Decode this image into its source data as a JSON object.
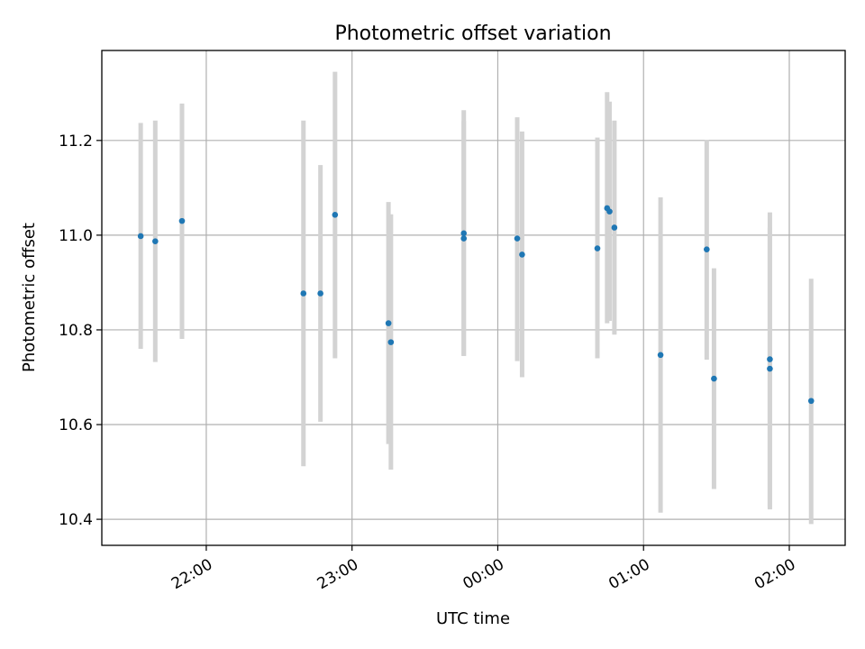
{
  "chart_data": {
    "type": "scatter",
    "title": "Photometric offset variation",
    "xlabel": "UTC time",
    "ylabel": "Photometric offset",
    "grid": true,
    "point_color": "#1f77b4",
    "errorbar_color": "#d3d3d3",
    "xlim": [
      "21:17",
      "02:23"
    ],
    "ylim": [
      10.345,
      11.39
    ],
    "x_ticks": [
      "22:00",
      "23:00",
      "00:00",
      "01:00",
      "02:00"
    ],
    "y_ticks": [
      "10.4",
      "10.6",
      "10.8",
      "11.0",
      "11.2"
    ],
    "points": [
      {
        "x": "21:33",
        "y": 10.998,
        "ylo": 10.76,
        "yhi": 11.237
      },
      {
        "x": "21:39",
        "y": 10.987,
        "ylo": 10.732,
        "yhi": 11.242
      },
      {
        "x": "21:50",
        "y": 11.03,
        "ylo": 10.781,
        "yhi": 11.278
      },
      {
        "x": "22:40",
        "y": 10.877,
        "ylo": 10.512,
        "yhi": 11.242
      },
      {
        "x": "22:47",
        "y": 10.877,
        "ylo": 10.606,
        "yhi": 11.148
      },
      {
        "x": "22:53",
        "y": 11.043,
        "ylo": 10.74,
        "yhi": 11.345
      },
      {
        "x": "23:15",
        "y": 10.814,
        "ylo": 10.559,
        "yhi": 11.07
      },
      {
        "x": "23:16",
        "y": 10.774,
        "ylo": 10.505,
        "yhi": 11.044
      },
      {
        "x": "23:46",
        "y": 11.004,
        "ylo": 10.745,
        "yhi": 11.264
      },
      {
        "x": "23:46",
        "y": 10.993,
        "ylo": 10.745,
        "yhi": 11.241
      },
      {
        "x": "00:08",
        "y": 10.993,
        "ylo": 10.734,
        "yhi": 11.249
      },
      {
        "x": "00:10",
        "y": 10.959,
        "ylo": 10.7,
        "yhi": 11.219
      },
      {
        "x": "00:41",
        "y": 10.972,
        "ylo": 10.74,
        "yhi": 11.206
      },
      {
        "x": "00:45",
        "y": 11.057,
        "ylo": 10.814,
        "yhi": 11.302
      },
      {
        "x": "00:46",
        "y": 11.05,
        "ylo": 10.819,
        "yhi": 11.282
      },
      {
        "x": "00:48",
        "y": 11.016,
        "ylo": 10.79,
        "yhi": 11.242
      },
      {
        "x": "01:07",
        "y": 10.747,
        "ylo": 10.414,
        "yhi": 11.08
      },
      {
        "x": "01:26",
        "y": 10.97,
        "ylo": 10.737,
        "yhi": 11.201
      },
      {
        "x": "01:29",
        "y": 10.697,
        "ylo": 10.464,
        "yhi": 10.93
      },
      {
        "x": "01:52",
        "y": 10.738,
        "ylo": 10.426,
        "yhi": 11.048
      },
      {
        "x": "01:52",
        "y": 10.718,
        "ylo": 10.421,
        "yhi": 11.016
      },
      {
        "x": "02:09",
        "y": 10.65,
        "ylo": 10.39,
        "yhi": 10.908
      }
    ]
  }
}
